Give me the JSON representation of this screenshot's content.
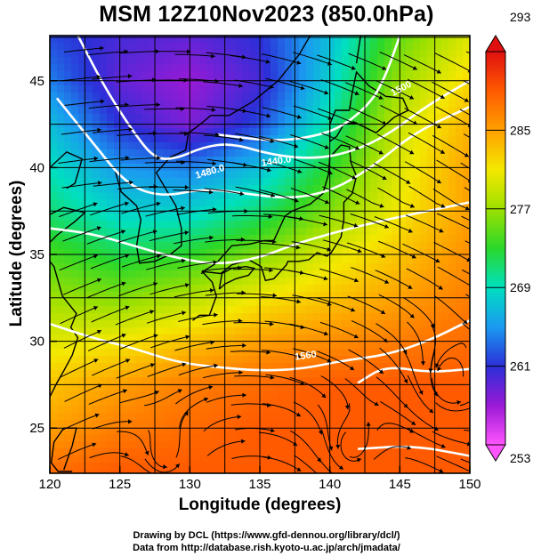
{
  "chart_data": {
    "type": "heatmap",
    "title": "MSM 12Z10Nov2023 (850.0hPa)",
    "xlabel": "Longitude (degrees)",
    "ylabel": "Latitude  (degrees)",
    "xlim": [
      120,
      150
    ],
    "ylim": [
      22.4,
      47.6
    ],
    "x_ticks": [
      120,
      125,
      130,
      135,
      140,
      145,
      150
    ],
    "y_ticks": [
      25,
      30,
      35,
      40,
      45
    ],
    "colorbar": {
      "range": [
        253,
        293
      ],
      "ticks": [
        253,
        261,
        269,
        277,
        285,
        293
      ],
      "colors": [
        "#ff55ff",
        "#9a1ad6",
        "#2b2fd8",
        "#1a9af0",
        "#00e0c0",
        "#2ad82a",
        "#9ee000",
        "#f4e800",
        "#ffa000",
        "#ff5a00",
        "#e01010"
      ]
    },
    "temperature_field_K": {
      "lons": [
        120,
        125,
        130,
        135,
        140,
        145,
        150
      ],
      "lats": [
        47.5,
        45,
        42.5,
        40,
        37.5,
        35,
        32.5,
        30,
        27.5,
        25,
        22.5
      ],
      "values": [
        [
          262,
          260,
          259,
          261,
          267,
          275,
          280
        ],
        [
          264,
          259,
          257,
          260,
          268,
          277,
          282
        ],
        [
          267,
          261,
          258,
          262,
          270,
          279,
          284
        ],
        [
          269,
          265,
          264,
          267,
          273,
          280,
          285
        ],
        [
          271,
          268,
          268,
          271,
          276,
          281,
          285
        ],
        [
          274,
          272,
          273,
          276,
          280,
          283,
          286
        ],
        [
          277,
          276,
          278,
          281,
          283,
          285,
          287
        ],
        [
          280,
          281,
          283,
          285,
          286,
          287,
          288
        ],
        [
          283,
          285,
          287,
          288,
          289,
          289,
          289
        ],
        [
          285,
          287,
          288,
          289,
          289,
          289,
          289
        ],
        [
          288,
          289,
          289,
          289,
          289,
          289,
          289
        ]
      ]
    },
    "contour_labels": [
      "1440.0",
      "1480.0",
      "1500",
      "1560"
    ],
    "credits": [
      "Drawing by DCL (https://www.gfd-dennou.org/library/dcl/)",
      "Data from http://database.rish.kyoto-u.ac.jp/arch/jmadata/"
    ]
  }
}
